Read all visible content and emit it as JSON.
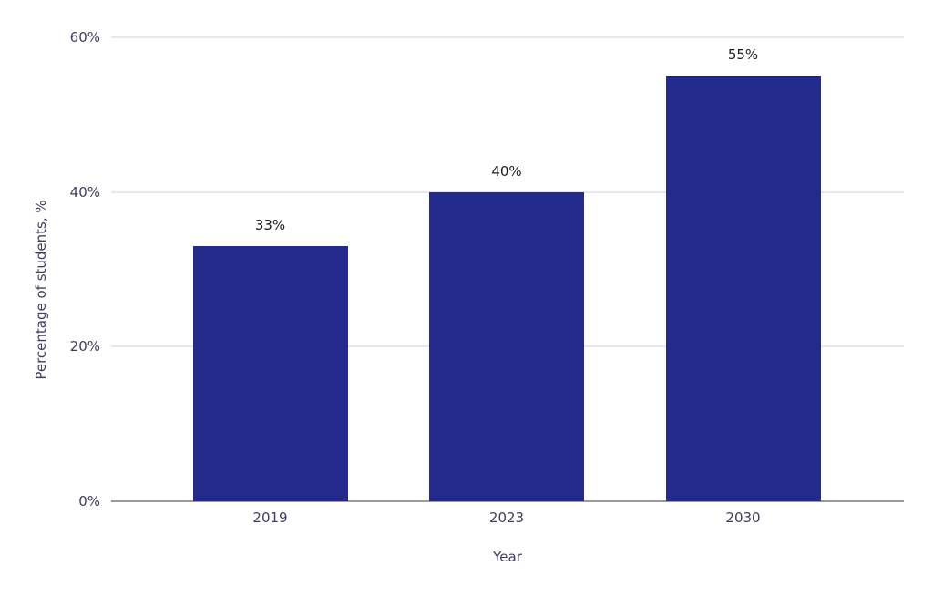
{
  "chart_data": {
    "type": "bar",
    "title": "",
    "categories": [
      "2019",
      "2023",
      "2030"
    ],
    "values": [
      33,
      40,
      55
    ],
    "bar_value_labels": [
      "33%",
      "40%",
      "55%"
    ],
    "xlabel": "Year",
    "ylabel": "Percentage of students, %",
    "ylim": [
      0,
      60
    ],
    "yticks": [
      0,
      20,
      40,
      60
    ],
    "ytick_labels": [
      "0%",
      "20%",
      "40%",
      "60%"
    ],
    "grid": "horizontal",
    "legend": "none",
    "colors": {
      "bar": "#242A8C",
      "axis_text": "#3F3F63",
      "data_label": "#1C1C1C",
      "gridline": "#E8E8E8",
      "axis_line": "#9B9B9B",
      "background": "#FFFFFF"
    }
  }
}
